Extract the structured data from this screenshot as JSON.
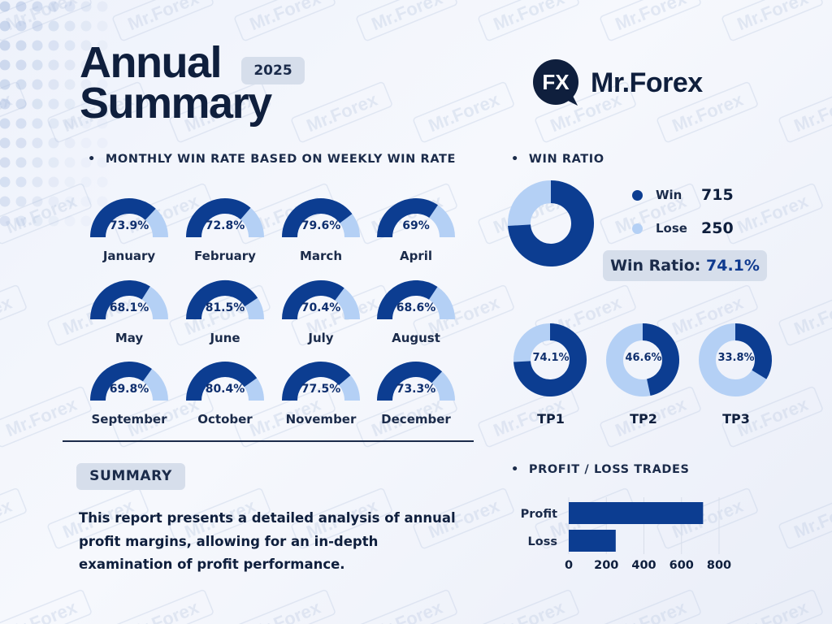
{
  "header": {
    "title_line1": "Annual",
    "title_line2": "Summary",
    "year": "2025"
  },
  "brand": {
    "name": "Mr.Forex",
    "logo_mark": "FX",
    "watermark": "Mr.Forex"
  },
  "colors": {
    "primary": "#0c3d91",
    "secondary": "#b4d0f5",
    "text": "#0f1f3d",
    "badge_bg": "#d6deeb"
  },
  "sections": {
    "monthly": "MONTHLY WIN RATE BASED ON WEEKLY WIN RATE",
    "win_ratio": "WIN RATIO",
    "profit_loss": "PROFIT / LOSS TRADES",
    "bullet": "•"
  },
  "summary": {
    "label": "SUMMARY",
    "text": "This report presents a detailed analysis of annual profit margins, allowing for an in-depth examination of profit performance."
  },
  "win_ratio": {
    "legend": [
      {
        "name": "Win",
        "value": "715"
      },
      {
        "name": "Lose",
        "value": "250"
      }
    ],
    "ratio_label": "Win Ratio:",
    "ratio_value": "74.1%"
  },
  "chart_data": [
    {
      "type": "gauge",
      "title": "MONTHLY WIN RATE BASED ON WEEKLY WIN RATE",
      "categories": [
        "January",
        "February",
        "March",
        "April",
        "May",
        "June",
        "July",
        "August",
        "September",
        "October",
        "November",
        "December"
      ],
      "values": [
        73.9,
        72.8,
        79.6,
        69,
        68.1,
        81.5,
        70.4,
        68.6,
        69.8,
        80.4,
        77.5,
        73.3
      ],
      "labels": [
        "73.9%",
        "72.8%",
        "79.6%",
        "69%",
        "68.1%",
        "81.5%",
        "70.4%",
        "68.6%",
        "69.8%",
        "80.4%",
        "77.5%",
        "73.3%"
      ],
      "unit": "%"
    },
    {
      "type": "pie",
      "title": "WIN RATIO",
      "categories": [
        "Win",
        "Lose"
      ],
      "values": [
        715,
        250
      ],
      "legend": "right"
    },
    {
      "type": "pie",
      "categories": [
        "TP1",
        "TP2",
        "TP3"
      ],
      "values": [
        74.1,
        46.6,
        33.8
      ],
      "labels": [
        "74.1%",
        "46.6%",
        "33.8%"
      ],
      "unit": "%"
    },
    {
      "type": "bar",
      "orientation": "horizontal",
      "title": "PROFIT / LOSS TRADES",
      "categories": [
        "Profit",
        "Loss"
      ],
      "values": [
        715,
        250
      ],
      "xlim": [
        0,
        800
      ],
      "xticks": [
        "0",
        "200",
        "400",
        "600",
        "800"
      ],
      "grid": true
    }
  ]
}
